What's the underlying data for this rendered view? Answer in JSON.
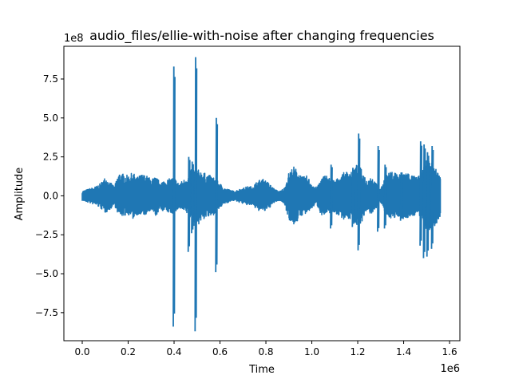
{
  "chart_data": {
    "type": "line",
    "title": "audio_files/ellie-with-noise after changing frequencies",
    "xlabel": "Time",
    "ylabel": "Amplitude",
    "x_offset_label": "1e6",
    "y_offset_label": "1e8",
    "x_scale": 1000000,
    "y_scale": 100000000,
    "xlim": [
      -80000,
      1645000
    ],
    "ylim": [
      -9.3,
      9.6
    ],
    "x_ticks": [
      0,
      0.2,
      0.4,
      0.6,
      0.8,
      1.0,
      1.2,
      1.4,
      1.6
    ],
    "x_tick_labels": [
      "0.0",
      "0.2",
      "0.4",
      "0.6",
      "0.8",
      "1.0",
      "1.2",
      "1.4",
      "1.6"
    ],
    "y_ticks": [
      -7.5,
      -5.0,
      -2.5,
      0.0,
      2.5,
      5.0,
      7.5
    ],
    "y_tick_labels": [
      "−7.5",
      "−5.0",
      "−2.5",
      "0.0",
      "2.5",
      "5.0",
      "7.5"
    ],
    "grid": false,
    "series": [
      {
        "color": "#1f77b4",
        "envelope_x": [
          0,
          20000,
          40000,
          60000,
          80000,
          100000,
          120000,
          140000,
          160000,
          180000,
          200000,
          220000,
          240000,
          260000,
          280000,
          300000,
          320000,
          340000,
          360000,
          380000,
          400000,
          420000,
          440000,
          460000,
          480000,
          500000,
          520000,
          540000,
          560000,
          580000,
          600000,
          620000,
          640000,
          660000,
          680000,
          700000,
          720000,
          740000,
          760000,
          780000,
          800000,
          820000,
          840000,
          860000,
          880000,
          900000,
          920000,
          940000,
          960000,
          980000,
          1000000,
          1020000,
          1040000,
          1060000,
          1080000,
          1100000,
          1120000,
          1140000,
          1160000,
          1180000,
          1200000,
          1220000,
          1240000,
          1260000,
          1280000,
          1300000,
          1320000,
          1340000,
          1360000,
          1380000,
          1400000,
          1420000,
          1440000,
          1460000,
          1480000,
          1500000,
          1520000,
          1540000,
          1560000
        ],
        "envelope_max": [
          0.3,
          0.4,
          0.5,
          0.6,
          0.8,
          1.2,
          0.9,
          0.6,
          1.5,
          1.4,
          1.3,
          1.5,
          1.2,
          1.4,
          1.3,
          1.1,
          1.2,
          0.9,
          1.0,
          1.1,
          1.2,
          0.8,
          1.0,
          1.3,
          1.8,
          1.7,
          1.6,
          1.4,
          1.3,
          1.1,
          0.8,
          0.5,
          0.4,
          0.3,
          0.4,
          0.5,
          0.6,
          0.6,
          0.9,
          1.1,
          1.0,
          0.7,
          0.4,
          0.3,
          0.5,
          1.5,
          1.9,
          1.6,
          1.2,
          1.3,
          0.8,
          0.5,
          1.1,
          1.4,
          1.1,
          1.0,
          1.2,
          1.5,
          1.6,
          1.7,
          2.1,
          1.6,
          1.0,
          1.3,
          0.8,
          0.4,
          1.3,
          1.5,
          1.6,
          1.4,
          1.6,
          1.5,
          1.3,
          1.2,
          1.5,
          2.3,
          2.2,
          1.8,
          1.2
        ],
        "envelope_min": [
          -0.3,
          -0.4,
          -0.5,
          -0.6,
          -0.8,
          -1.1,
          -0.9,
          -0.6,
          -1.3,
          -1.3,
          -1.2,
          -1.5,
          -1.2,
          -1.3,
          -1.2,
          -1.0,
          -1.3,
          -0.9,
          -1.0,
          -1.1,
          -1.2,
          -0.8,
          -1.0,
          -1.2,
          -1.9,
          -2.0,
          -1.6,
          -1.4,
          -1.4,
          -1.1,
          -0.8,
          -0.5,
          -0.4,
          -0.3,
          -0.4,
          -0.5,
          -0.6,
          -0.6,
          -0.9,
          -1.0,
          -1.0,
          -0.7,
          -0.4,
          -0.3,
          -0.5,
          -1.5,
          -1.9,
          -1.6,
          -1.2,
          -1.2,
          -0.8,
          -0.5,
          -1.2,
          -1.3,
          -1.1,
          -1.1,
          -1.3,
          -1.5,
          -1.5,
          -1.6,
          -2.0,
          -1.6,
          -1.0,
          -1.2,
          -0.8,
          -0.4,
          -1.2,
          -1.4,
          -1.5,
          -1.3,
          -1.6,
          -1.4,
          -1.3,
          -1.2,
          -1.5,
          -2.2,
          -2.3,
          -1.9,
          -1.3
        ],
        "spikes": [
          {
            "x": 400000,
            "max": 8.3,
            "min": -8.4
          },
          {
            "x": 495000,
            "max": 8.9,
            "min": -8.7
          },
          {
            "x": 585000,
            "max": 5.0,
            "min": -4.9
          },
          {
            "x": 465000,
            "max": 2.5,
            "min": -3.6
          },
          {
            "x": 480000,
            "max": 2.2,
            "min": -2.4
          },
          {
            "x": 1205000,
            "max": 4.0,
            "min": -3.5
          },
          {
            "x": 1290000,
            "max": 3.2,
            "min": -2.3
          },
          {
            "x": 1320000,
            "max": 2.0,
            "min": -2.1
          },
          {
            "x": 1085000,
            "max": 2.0,
            "min": -2.1
          },
          {
            "x": 1475000,
            "max": 3.5,
            "min": -3.2
          },
          {
            "x": 1490000,
            "max": 3.3,
            "min": -4.0
          },
          {
            "x": 1505000,
            "max": 2.8,
            "min": -3.9
          },
          {
            "x": 1525000,
            "max": 3.2,
            "min": -3.4
          },
          {
            "x": 1555000,
            "max": 1.3,
            "min": -1.5
          },
          {
            "x": 1180000,
            "max": 1.8,
            "min": -2.0
          },
          {
            "x": 1390000,
            "max": 1.5,
            "min": -1.6
          }
        ]
      }
    ]
  }
}
